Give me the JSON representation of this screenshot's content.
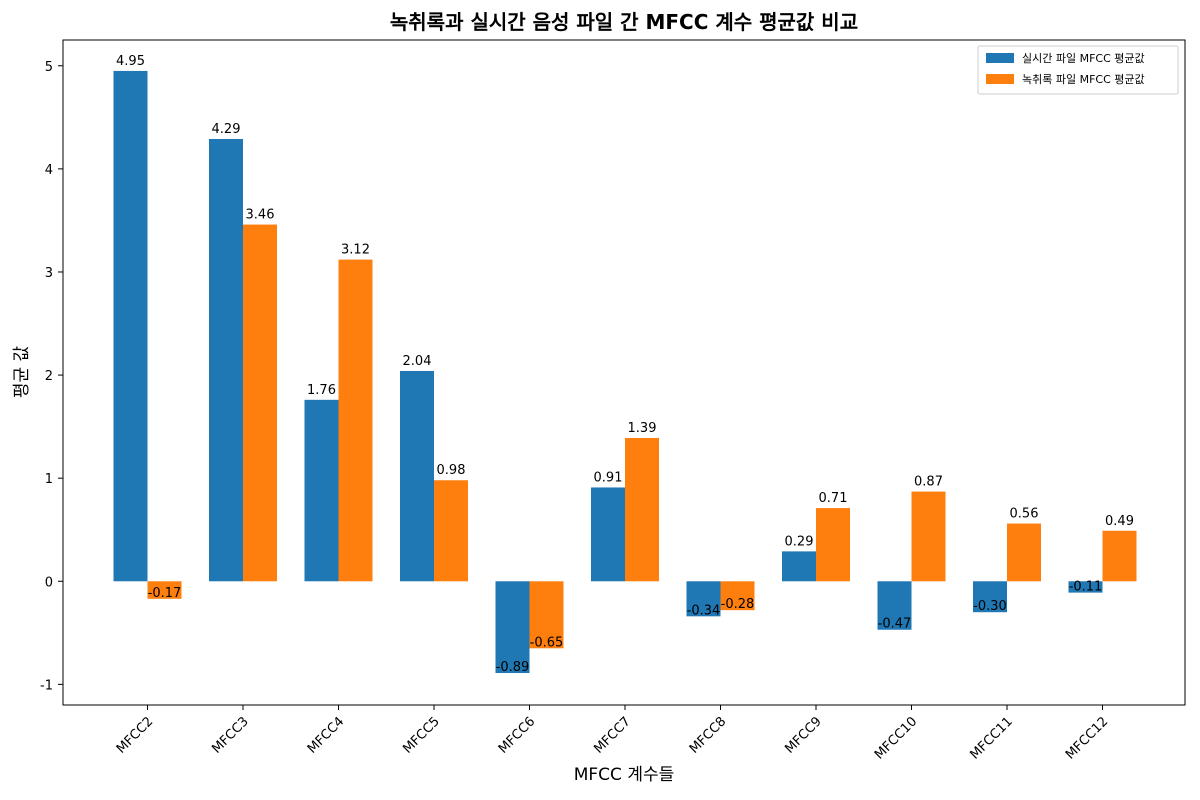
{
  "chart_data": {
    "type": "bar",
    "title": "녹취록과 실시간 음성 파일 간 MFCC 계수 평균값 비교",
    "xlabel": "MFCC 계수들",
    "ylabel": "평균 값",
    "categories": [
      "MFCC2",
      "MFCC3",
      "MFCC4",
      "MFCC5",
      "MFCC6",
      "MFCC7",
      "MFCC8",
      "MFCC9",
      "MFCC10",
      "MFCC11",
      "MFCC12"
    ],
    "series": [
      {
        "name": "실시간 파일 MFCC 평균값",
        "color": "#1f77b4",
        "values": [
          4.95,
          4.29,
          1.76,
          2.04,
          -0.89,
          0.91,
          -0.34,
          0.29,
          -0.47,
          -0.3,
          -0.11
        ],
        "labels": [
          "4.95",
          "4.29",
          "1.76",
          "2.04",
          "-0.89",
          "0.91",
          "-0.34",
          "0.29",
          "-0.47",
          "-0.30",
          "-0.11"
        ]
      },
      {
        "name": "녹취록 파일 MFCC 평균값",
        "color": "#ff7f0e",
        "values": [
          -0.17,
          3.46,
          3.12,
          0.98,
          -0.65,
          1.39,
          -0.28,
          0.71,
          0.87,
          0.56,
          0.49
        ],
        "labels": [
          "-0.17",
          "3.46",
          "3.12",
          "0.98",
          "-0.65",
          "1.39",
          "-0.28",
          "0.71",
          "0.87",
          "0.56",
          "0.49"
        ]
      }
    ],
    "ylim": [
      -1.2,
      5.25
    ],
    "yticks": [
      -1,
      0,
      1,
      2,
      3,
      4,
      5
    ],
    "ytick_labels": [
      "-1",
      "0",
      "1",
      "2",
      "3",
      "4",
      "5"
    ],
    "grid": false,
    "legend_position": "top-right"
  }
}
